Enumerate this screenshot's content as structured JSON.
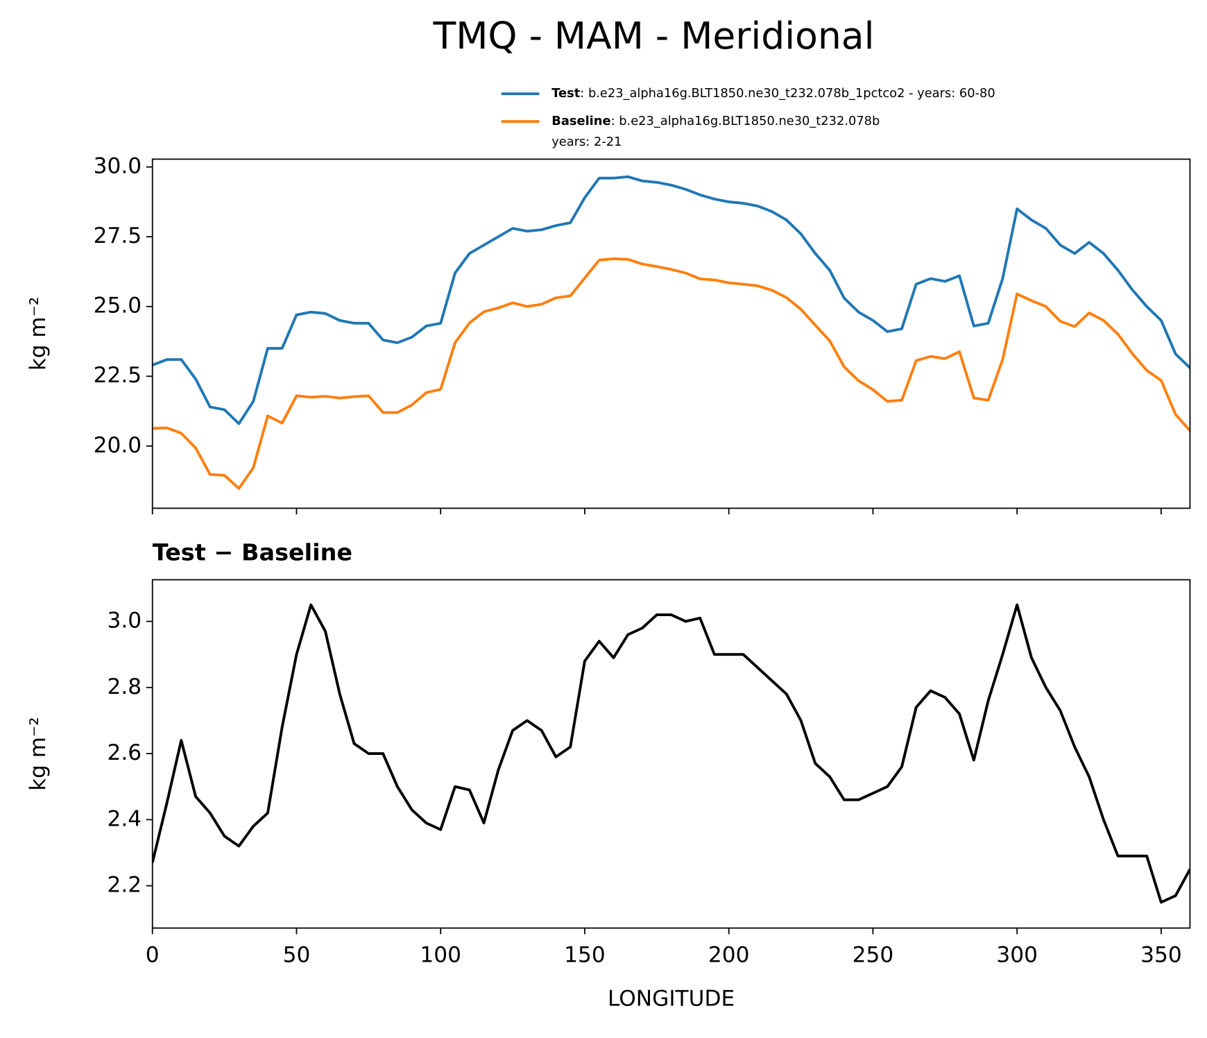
{
  "title": "TMQ - MAM - Meridional",
  "chart_data": [
    {
      "type": "line",
      "y_label": "kg m⁻²",
      "legend": "top-right-outside",
      "xtick_labels": false,
      "x": [
        0,
        5,
        10,
        15,
        20,
        25,
        30,
        35,
        40,
        45,
        50,
        55,
        60,
        65,
        70,
        75,
        80,
        85,
        90,
        95,
        100,
        105,
        110,
        115,
        120,
        125,
        130,
        135,
        140,
        145,
        150,
        155,
        160,
        165,
        170,
        175,
        180,
        185,
        190,
        195,
        200,
        205,
        210,
        215,
        220,
        225,
        230,
        235,
        240,
        245,
        250,
        255,
        260,
        265,
        270,
        275,
        280,
        285,
        290,
        295,
        300,
        305,
        310,
        315,
        320,
        325,
        330,
        335,
        340,
        345,
        350,
        355,
        360
      ],
      "series": [
        {
          "name": "Test",
          "description": [
            ": b.e23_alpha16g.BLT1850.ne30_t232.078b_1pctco2 - years: 60-80"
          ],
          "color": "#1f77b4",
          "values": [
            22.9,
            23.1,
            23.1,
            22.4,
            21.4,
            21.3,
            20.8,
            21.6,
            23.5,
            23.5,
            24.7,
            24.8,
            24.75,
            24.5,
            24.4,
            24.4,
            23.8,
            23.7,
            23.9,
            24.3,
            24.4,
            26.2,
            26.9,
            27.2,
            27.5,
            27.8,
            27.7,
            27.75,
            27.9,
            28.0,
            28.9,
            29.6,
            29.6,
            29.65,
            29.5,
            29.45,
            29.35,
            29.2,
            29.0,
            28.85,
            28.75,
            28.7,
            28.6,
            28.4,
            28.1,
            27.6,
            26.9,
            26.3,
            25.3,
            24.8,
            24.5,
            24.1,
            24.2,
            25.8,
            26.0,
            25.9,
            26.1,
            24.3,
            24.4,
            26.0,
            28.5,
            28.1,
            27.8,
            27.2,
            26.9,
            27.3,
            26.9,
            26.3,
            25.6,
            25.0,
            24.5,
            23.3,
            22.8
          ]
        },
        {
          "name": "Baseline",
          "description": [
            ": b.e23_alpha16g.BLT1850.ne30_t232.078b",
            "years: 2-21"
          ],
          "color": "#ff7f0e",
          "values": [
            20.63,
            20.65,
            20.46,
            19.93,
            18.98,
            18.95,
            18.48,
            19.22,
            21.08,
            20.82,
            21.8,
            21.75,
            21.78,
            21.72,
            21.77,
            21.8,
            21.2,
            21.2,
            21.47,
            21.91,
            22.03,
            23.7,
            24.41,
            24.81,
            24.95,
            25.13,
            25.0,
            25.08,
            25.31,
            25.38,
            26.02,
            26.66,
            26.71,
            26.69,
            26.52,
            26.43,
            26.33,
            26.2,
            25.99,
            25.95,
            25.85,
            25.8,
            25.74,
            25.58,
            25.32,
            24.9,
            24.33,
            23.77,
            22.84,
            22.34,
            22.02,
            21.6,
            21.64,
            23.06,
            23.21,
            23.13,
            23.38,
            21.72,
            21.64,
            23.1,
            25.45,
            25.21,
            25.0,
            24.47,
            24.28,
            24.77,
            24.5,
            24.01,
            23.31,
            22.71,
            22.35,
            21.13,
            20.55
          ]
        }
      ],
      "xlim": [
        0,
        360
      ],
      "xticks": [
        0,
        50,
        100,
        150,
        200,
        250,
        300,
        350
      ],
      "ylim": [
        17.77,
        30.28
      ],
      "yticks": [
        {
          "value": 20,
          "label": "20.0"
        },
        22.5,
        {
          "value": 25,
          "label": "25.0"
        },
        27.5,
        {
          "value": 30,
          "label": "30.0"
        }
      ]
    },
    {
      "type": "line",
      "title": "Test − Baseline",
      "x_label": "LONGITUDE",
      "y_label": "kg m⁻²",
      "xtick_labels": true,
      "x": [
        0,
        5,
        10,
        15,
        20,
        25,
        30,
        35,
        40,
        45,
        50,
        55,
        60,
        65,
        70,
        75,
        80,
        85,
        90,
        95,
        100,
        105,
        110,
        115,
        120,
        125,
        130,
        135,
        140,
        145,
        150,
        155,
        160,
        165,
        170,
        175,
        180,
        185,
        190,
        195,
        200,
        205,
        210,
        215,
        220,
        225,
        230,
        235,
        240,
        245,
        250,
        255,
        260,
        265,
        270,
        275,
        280,
        285,
        290,
        295,
        300,
        305,
        310,
        315,
        320,
        325,
        330,
        335,
        340,
        345,
        350,
        355,
        360
      ],
      "series": [
        {
          "color": "#000000",
          "values": [
            2.27,
            2.45,
            2.64,
            2.47,
            2.42,
            2.35,
            2.32,
            2.38,
            2.42,
            2.68,
            2.9,
            3.05,
            2.97,
            2.78,
            2.63,
            2.6,
            2.6,
            2.5,
            2.43,
            2.39,
            2.37,
            2.5,
            2.49,
            2.39,
            2.55,
            2.67,
            2.7,
            2.67,
            2.59,
            2.62,
            2.88,
            2.94,
            2.89,
            2.96,
            2.98,
            3.02,
            3.02,
            3.0,
            3.01,
            2.9,
            2.9,
            2.9,
            2.86,
            2.82,
            2.78,
            2.7,
            2.57,
            2.53,
            2.46,
            2.46,
            2.48,
            2.5,
            2.56,
            2.74,
            2.79,
            2.77,
            2.72,
            2.58,
            2.76,
            2.9,
            3.05,
            2.89,
            2.8,
            2.73,
            2.62,
            2.53,
            2.4,
            2.29,
            2.29,
            2.29,
            2.15,
            2.17,
            2.25
          ]
        }
      ],
      "xlim": [
        0,
        360
      ],
      "xticks": [
        0,
        50,
        100,
        150,
        200,
        250,
        300,
        350
      ],
      "ylim": [
        2.072,
        3.126
      ],
      "yticks": [
        2.2,
        2.4,
        2.6,
        2.8,
        {
          "value": 3,
          "label": "3.0"
        }
      ]
    }
  ]
}
